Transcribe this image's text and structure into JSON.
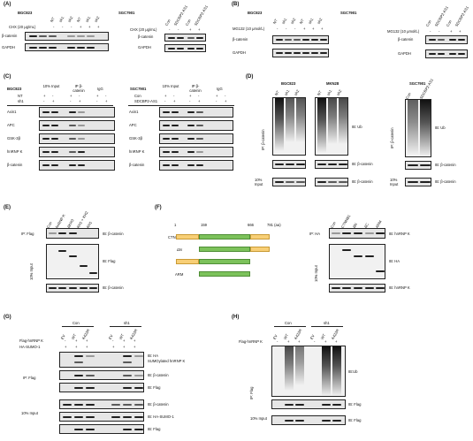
{
  "panels": {
    "A": {
      "letter": "(A)",
      "cell1": "BGC823",
      "cell2": "SGC7901",
      "row_nt": "NT",
      "row_sh1": "sh1",
      "row_sh2": "sh2",
      "chx": "CHX (20 μg/mL)",
      "con": "Con",
      "sdc": "SDCBP2-AS1",
      "plus": "+",
      "minus": "-",
      "bcat": "β-catenin",
      "gapdh": "GAPDH"
    },
    "B": {
      "letter": "(B)",
      "cell1": "BGC823",
      "cell2": "SGC7901",
      "mg": "MG132 (10 μmol/L)",
      "bcat": "β-catenin",
      "gapdh": "GAPDH"
    },
    "C": {
      "letter": "(C)",
      "cell1": "BGC823",
      "cell2": "SGC7901",
      "input": "10% Input",
      "ip": "IP β-catenin",
      "igg": "IgG",
      "nt": "NT",
      "sh1": "sh1",
      "con": "Con",
      "sdc": "SDCBP2-AS1",
      "rows": [
        "Axin1",
        "APC",
        "GSK-3β",
        "hnRNP K",
        "β-catenin"
      ]
    },
    "D": {
      "letter": "(D)",
      "c1": "BGC823",
      "c2": "MKN28",
      "c3": "SGC7901",
      "ip": "IP: β-catenin",
      "ib_ub": "IB: Ub",
      "ib_bcat": "IB: β-catenin",
      "input": "10% Input",
      "nt": "NT",
      "sh1": "sh1",
      "sh2": "sh2",
      "con": "Con",
      "sdc": "SDCBP2-AS1"
    },
    "E": {
      "letter": "(E)",
      "ip": "IP: Flag",
      "ib_bcat": "IB: β-catenin",
      "ib_flag": "IB: Flag",
      "input": "10% Input",
      "lanes": [
        "Con",
        "hnRNP K",
        "ΔKH3",
        "KH1 + KH2",
        "KH1"
      ]
    },
    "F": {
      "letter": "(F)",
      "pos1": "1",
      "pos2": "159",
      "pos3": "666",
      "pos4": "781 (aa)",
      "constructs": [
        "CTNNB1",
        "ΔN",
        "ΔC",
        "ARM"
      ],
      "ip": "IP: HA",
      "ib_hn": "IB: hnRNP K",
      "ib_ha": "IB: HA",
      "input": "10% Input",
      "lanes": [
        "Con",
        "CTNNB1",
        "ΔN",
        "ΔC",
        "ARM"
      ]
    },
    "G": {
      "letter": "(G)",
      "con": "Con",
      "sh1": "sh1",
      "ev": "EV",
      "wt": "WT",
      "k": "K422R",
      "flag_hn": "Flag-hnRNP K",
      "ha": "HA-SUMO-1",
      "ip": "IP: Flag",
      "input": "10% Input",
      "ib1": "IB: HA",
      "ib1b": "SUMOylated hnRNP K",
      "ib2": "IB: β-catenin",
      "ib3": "IB: Flag",
      "ib4": "IB: β-catenin",
      "ib5": "IB: HA-SUMO-1",
      "ib6": "IB: Flag"
    },
    "H": {
      "letter": "(H)",
      "con": "Con",
      "sh1": "sh1",
      "ev": "EV",
      "wt": "WT",
      "k": "K422R",
      "flag_hn": "Flag-hnRNP K",
      "ip": "IP: Flag",
      "ib_ub": "IB:Ub",
      "ib_flag": "IB: Flag",
      "ib_flag2": "IB: Flag",
      "input": "10% Input"
    }
  }
}
